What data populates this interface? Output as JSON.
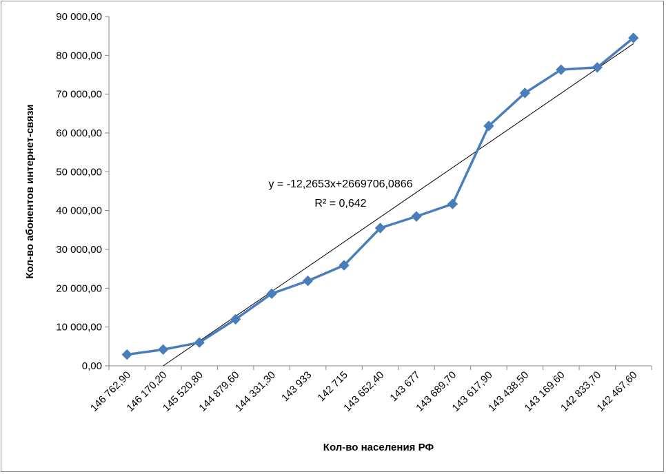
{
  "chart_data": {
    "type": "line",
    "title": "",
    "xlabel": "Кол-во населения РФ",
    "ylabel": "Кол-во абонентов интернет-связи",
    "categories": [
      "146 762,90",
      "146 170,20",
      "145 520,80",
      "144 879,60",
      "144 331,30",
      "143 933",
      "142 715",
      "143 652,40",
      "143 677",
      "143 689,70",
      "143 617,90",
      "143 438,50",
      "143 169,60",
      "142 833,70",
      "142 467,60"
    ],
    "series": [
      {
        "values": [
          2900,
          4200,
          6000,
          12000,
          18600,
          21900,
          25900,
          35500,
          38500,
          41700,
          61800,
          70300,
          76300,
          76900,
          84500
        ],
        "color": "#4a7ebb",
        "marker": "diamond"
      }
    ],
    "trendline": {
      "type": "linear",
      "equation": "y = -12,2653x+2669706,0866",
      "r_squared": "R² = 0,642",
      "start_category_index": 1,
      "start_value": -200,
      "end_category_index": 14,
      "end_value": 83000,
      "color": "#000000"
    },
    "ylim": [
      0,
      90000
    ],
    "yticks": [
      0,
      10000,
      20000,
      30000,
      40000,
      50000,
      60000,
      70000,
      80000,
      90000
    ],
    "ytick_labels": [
      "0,00",
      "10 000,00",
      "20 000,00",
      "30 000,00",
      "40 000,00",
      "50 000,00",
      "60 000,00",
      "70 000,00",
      "80 000,00",
      "90 000,00"
    ],
    "grid": false,
    "legend": "none"
  }
}
